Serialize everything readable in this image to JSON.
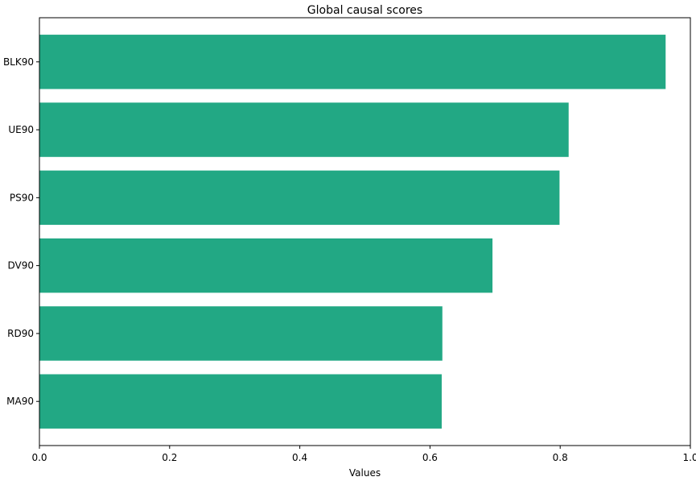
{
  "chart_data": {
    "type": "bar",
    "orientation": "horizontal",
    "title": "Global causal scores",
    "xlabel": "Values",
    "ylabel": "",
    "categories": [
      "BLK90",
      "UE90",
      "PS90",
      "DV90",
      "RD90",
      "MA90"
    ],
    "values": [
      0.962,
      0.813,
      0.799,
      0.696,
      0.619,
      0.618
    ],
    "xlim": [
      0,
      1.0
    ],
    "xticks": [
      "0.0",
      "0.2",
      "0.4",
      "0.6",
      "0.8",
      "1.0"
    ],
    "bar_color": "#22a884",
    "grid": false,
    "legend": "none"
  }
}
